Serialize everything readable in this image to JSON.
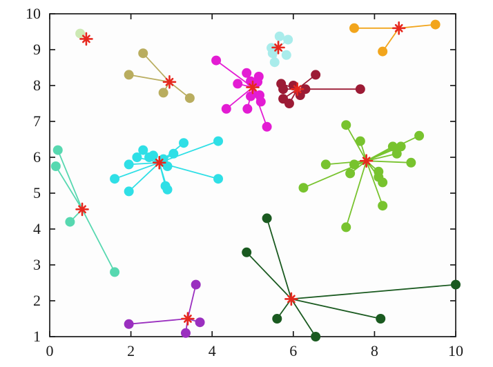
{
  "chart_data": {
    "type": "scatter",
    "title": "",
    "xlabel": "",
    "ylabel": "",
    "xlim": [
      0,
      10
    ],
    "ylim": [
      1,
      10
    ],
    "x_ticks": [
      0,
      2,
      4,
      6,
      8,
      10
    ],
    "x_tick_labels": [
      "0",
      "2",
      "4",
      "6",
      "8",
      "10"
    ],
    "y_ticks": [
      1,
      2,
      3,
      4,
      5,
      6,
      7,
      8,
      9,
      10
    ],
    "y_tick_labels": [
      "1",
      "2",
      "3",
      "4",
      "5",
      "6",
      "7",
      "8",
      "9",
      "10"
    ],
    "grid": false,
    "legend": "none",
    "frame_color": "#1a1a1a",
    "plot_bg_color": "#fdfdfd",
    "centroid_marker": {
      "shape": "asterisk-8-arm",
      "color": "#e6281e"
    },
    "clusters": [
      {
        "name": "pale-green",
        "color": "#cde9b4",
        "centroid": [
          0.9,
          9.3
        ],
        "points": [
          [
            0.75,
            9.45
          ]
        ]
      },
      {
        "name": "dark-khaki",
        "color": "#b9ad5f",
        "centroid": [
          2.95,
          8.1
        ],
        "points": [
          [
            2.3,
            8.9
          ],
          [
            1.95,
            8.3
          ],
          [
            2.8,
            7.8
          ],
          [
            3.45,
            7.65
          ]
        ]
      },
      {
        "name": "magenta",
        "color": "#e31cd3",
        "centroid": [
          5.0,
          7.95
        ],
        "points": [
          [
            4.1,
            8.7
          ],
          [
            4.85,
            8.35
          ],
          [
            5.15,
            8.25
          ],
          [
            4.63,
            8.05
          ],
          [
            5.12,
            8.1
          ],
          [
            4.95,
            8.12
          ],
          [
            5.17,
            7.73
          ],
          [
            4.95,
            7.7
          ],
          [
            5.2,
            7.55
          ],
          [
            4.35,
            7.35
          ],
          [
            4.87,
            7.35
          ],
          [
            5.35,
            6.85
          ]
        ]
      },
      {
        "name": "pale-turquoise",
        "color": "#a9eceb",
        "centroid": [
          5.63,
          9.06
        ],
        "points": [
          [
            5.66,
            9.37
          ],
          [
            5.87,
            9.28
          ],
          [
            5.46,
            9.05
          ],
          [
            5.49,
            8.9
          ],
          [
            5.54,
            8.65
          ],
          [
            5.83,
            8.85
          ]
        ]
      },
      {
        "name": "orange",
        "color": "#f2a51c",
        "centroid": [
          8.6,
          9.6
        ],
        "points": [
          [
            7.5,
            9.6
          ],
          [
            9.5,
            9.7
          ],
          [
            8.2,
            8.95
          ]
        ]
      },
      {
        "name": "dark-red",
        "color": "#9c1b35",
        "centroid": [
          6.1,
          7.9
        ],
        "points": [
          [
            6.55,
            8.3
          ],
          [
            5.7,
            8.05
          ],
          [
            6.0,
            8.0
          ],
          [
            6.3,
            7.9
          ],
          [
            5.75,
            7.9
          ],
          [
            6.17,
            7.73
          ],
          [
            5.75,
            7.63
          ],
          [
            5.9,
            7.5
          ],
          [
            7.65,
            7.9
          ]
        ]
      },
      {
        "name": "cyan",
        "color": "#2fdfe6",
        "centroid": [
          2.7,
          5.85
        ],
        "points": [
          [
            2.3,
            6.2
          ],
          [
            2.15,
            6.0
          ],
          [
            1.95,
            5.8
          ],
          [
            2.45,
            6.0
          ],
          [
            2.55,
            6.05
          ],
          [
            2.8,
            5.95
          ],
          [
            3.05,
            6.1
          ],
          [
            3.3,
            6.4
          ],
          [
            4.15,
            6.45
          ],
          [
            2.9,
            5.75
          ],
          [
            1.6,
            5.4
          ],
          [
            1.95,
            5.05
          ],
          [
            2.85,
            5.2
          ],
          [
            2.9,
            5.1
          ],
          [
            4.15,
            5.4
          ]
        ]
      },
      {
        "name": "medium-turquoise",
        "color": "#57d8b0",
        "centroid": [
          0.8,
          4.55
        ],
        "points": [
          [
            0.2,
            6.2
          ],
          [
            0.15,
            5.75
          ],
          [
            0.5,
            4.2
          ],
          [
            1.6,
            2.8
          ]
        ]
      },
      {
        "name": "yellow-green",
        "color": "#78c32e",
        "centroid": [
          7.8,
          5.9
        ],
        "points": [
          [
            7.3,
            6.9
          ],
          [
            7.65,
            6.45
          ],
          [
            8.45,
            6.3
          ],
          [
            8.65,
            6.3
          ],
          [
            8.55,
            6.1
          ],
          [
            9.1,
            6.6
          ],
          [
            8.9,
            5.85
          ],
          [
            6.8,
            5.8
          ],
          [
            7.5,
            5.8
          ],
          [
            7.4,
            5.55
          ],
          [
            8.1,
            5.6
          ],
          [
            8.1,
            5.45
          ],
          [
            8.2,
            5.3
          ],
          [
            6.25,
            5.15
          ],
          [
            8.2,
            4.65
          ],
          [
            7.3,
            4.05
          ]
        ]
      },
      {
        "name": "dark-green",
        "color": "#1a5a20",
        "centroid": [
          5.95,
          2.05
        ],
        "points": [
          [
            5.35,
            4.3
          ],
          [
            4.85,
            3.35
          ],
          [
            10.0,
            2.45
          ],
          [
            8.15,
            1.5
          ],
          [
            5.6,
            1.5
          ],
          [
            6.55,
            1.0
          ]
        ]
      },
      {
        "name": "purple",
        "color": "#9a2fbf",
        "centroid": [
          3.4,
          1.5
        ],
        "points": [
          [
            3.6,
            2.45
          ],
          [
            3.7,
            1.4
          ],
          [
            3.35,
            1.1
          ],
          [
            1.95,
            1.35
          ]
        ]
      }
    ]
  }
}
